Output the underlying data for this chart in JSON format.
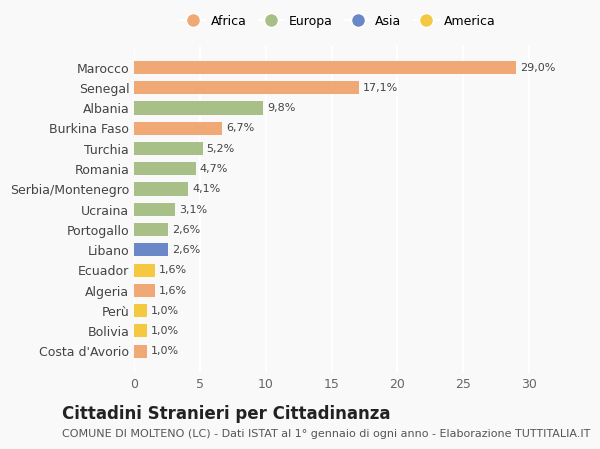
{
  "categories": [
    "Costa d'Avorio",
    "Bolivia",
    "Perù",
    "Algeria",
    "Ecuador",
    "Libano",
    "Portogallo",
    "Ucraina",
    "Serbia/Montenegro",
    "Romania",
    "Turchia",
    "Burkina Faso",
    "Albania",
    "Senegal",
    "Marocco"
  ],
  "values": [
    1.0,
    1.0,
    1.0,
    1.6,
    1.6,
    2.6,
    2.6,
    3.1,
    4.1,
    4.7,
    5.2,
    6.7,
    9.8,
    17.1,
    29.0
  ],
  "labels": [
    "1,0%",
    "1,0%",
    "1,0%",
    "1,6%",
    "1,6%",
    "2,6%",
    "2,6%",
    "3,1%",
    "4,1%",
    "4,7%",
    "5,2%",
    "6,7%",
    "9,8%",
    "17,1%",
    "29,0%"
  ],
  "colors": [
    "#f0a875",
    "#f5c842",
    "#f5c842",
    "#f0a875",
    "#f5c842",
    "#6a87c8",
    "#a8bf88",
    "#a8bf88",
    "#a8bf88",
    "#a8bf88",
    "#a8bf88",
    "#f0a875",
    "#a8bf88",
    "#f0a875",
    "#f0a875"
  ],
  "legend_labels": [
    "Africa",
    "Europa",
    "Asia",
    "America"
  ],
  "legend_colors": [
    "#f0a875",
    "#a8bf88",
    "#6a87c8",
    "#f5c842"
  ],
  "title": "Cittadini Stranieri per Cittadinanza",
  "subtitle": "COMUNE DI MOLTENO (LC) - Dati ISTAT al 1° gennaio di ogni anno - Elaborazione TUTTITALIA.IT",
  "xlim": [
    0,
    31
  ],
  "xticks": [
    0,
    5,
    10,
    15,
    20,
    25,
    30
  ],
  "background_color": "#f9f9f9",
  "grid_color": "#ffffff",
  "bar_height": 0.65,
  "title_fontsize": 12,
  "subtitle_fontsize": 8,
  "label_fontsize": 8,
  "tick_fontsize": 9
}
